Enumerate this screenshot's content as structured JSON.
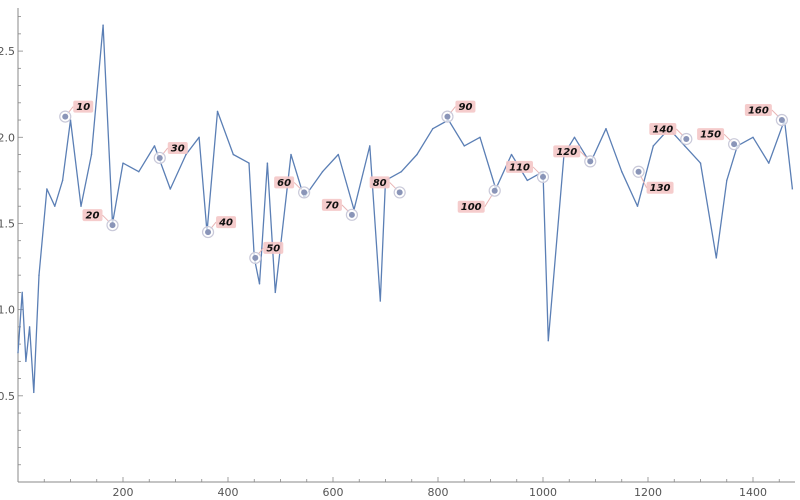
{
  "chart_data": {
    "type": "line",
    "title": "",
    "xlabel": "",
    "ylabel": "",
    "xlim": [
      0,
      1480
    ],
    "ylim": [
      0,
      2.75
    ],
    "x_ticks": [
      200,
      400,
      600,
      800,
      1000,
      1200,
      1400
    ],
    "y_ticks": [
      0.5,
      1.0,
      1.5,
      2.0,
      2.5
    ],
    "x_tick_labels": [
      "200",
      "400",
      "600",
      "800",
      "1000",
      "1200",
      "1400"
    ],
    "y_tick_labels": [
      "0.5",
      "1.0",
      "1.5",
      "2.0",
      "2.5"
    ],
    "grid": false,
    "series_color": "#5b7fb5",
    "marker_color": "#8a95b8",
    "callout_color": "#f4c6c6",
    "series": [
      {
        "x": [
          0,
          8,
          15,
          22,
          30,
          40,
          55,
          70,
          85,
          100,
          120,
          140,
          162,
          180,
          200,
          230,
          260,
          290,
          320,
          345,
          360,
          380,
          410,
          440,
          450,
          460,
          475,
          490,
          520,
          545,
          580,
          610,
          640,
          670,
          690,
          700,
          730,
          760,
          790,
          820,
          850,
          880,
          910,
          940,
          970,
          1000,
          1010,
          1040,
          1060,
          1090,
          1120,
          1150,
          1180,
          1210,
          1240,
          1270,
          1300,
          1330,
          1350,
          1370,
          1400,
          1430,
          1460,
          1475
        ],
        "y": [
          0.75,
          1.1,
          0.7,
          0.9,
          0.52,
          1.2,
          1.7,
          1.6,
          1.75,
          2.1,
          1.6,
          1.9,
          2.65,
          1.5,
          1.85,
          1.8,
          1.95,
          1.7,
          1.9,
          2.0,
          1.45,
          2.15,
          1.9,
          1.85,
          1.3,
          1.15,
          1.85,
          1.1,
          1.9,
          1.65,
          1.8,
          1.9,
          1.58,
          1.95,
          1.05,
          1.75,
          1.8,
          1.9,
          2.05,
          2.1,
          1.95,
          2.0,
          1.7,
          1.9,
          1.75,
          1.8,
          0.82,
          1.9,
          2.0,
          1.85,
          2.05,
          1.8,
          1.6,
          1.95,
          2.05,
          1.95,
          1.85,
          1.3,
          1.75,
          1.95,
          2.0,
          1.85,
          2.1,
          1.7
        ]
      }
    ],
    "callouts": [
      {
        "label": "10",
        "x": 90,
        "y": 2.12
      },
      {
        "label": "20",
        "x": 180,
        "y": 1.49
      },
      {
        "label": "30",
        "x": 270,
        "y": 1.88
      },
      {
        "label": "40",
        "x": 362,
        "y": 1.45
      },
      {
        "label": "50",
        "x": 452,
        "y": 1.3
      },
      {
        "label": "60",
        "x": 545,
        "y": 1.68
      },
      {
        "label": "70",
        "x": 636,
        "y": 1.55
      },
      {
        "label": "80",
        "x": 727,
        "y": 1.68
      },
      {
        "label": "90",
        "x": 818,
        "y": 2.12
      },
      {
        "label": "100",
        "x": 908,
        "y": 1.69
      },
      {
        "label": "110",
        "x": 1000,
        "y": 1.77
      },
      {
        "label": "120",
        "x": 1090,
        "y": 1.86
      },
      {
        "label": "130",
        "x": 1182,
        "y": 1.8
      },
      {
        "label": "140",
        "x": 1273,
        "y": 1.99
      },
      {
        "label": "150",
        "x": 1364,
        "y": 1.96
      },
      {
        "label": "160",
        "x": 1455,
        "y": 2.1
      }
    ]
  }
}
